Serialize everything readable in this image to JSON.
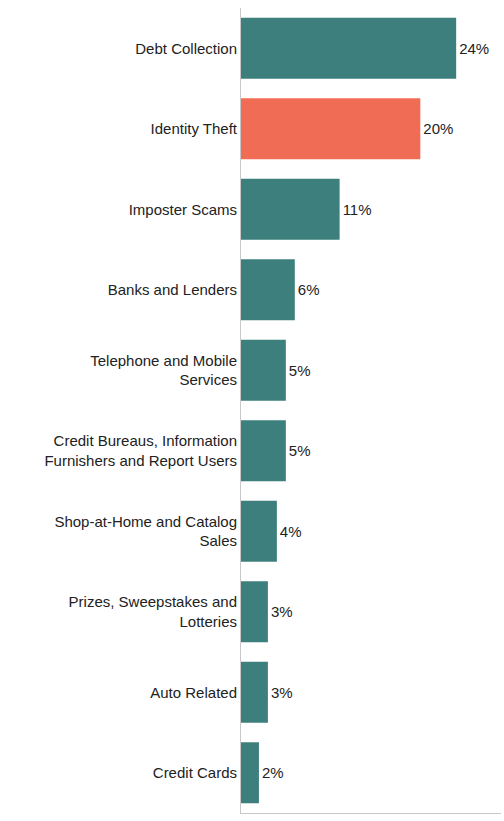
{
  "chart_data": {
    "type": "bar",
    "orientation": "horizontal",
    "categories": [
      "Debt Collection",
      "Identity Theft",
      "Imposter Scams",
      "Banks and Lenders",
      "Telephone and Mobile Services",
      "Credit Bureaus, Information Furnishers and Report Users",
      "Shop-at-Home and Catalog Sales",
      "Prizes, Sweepstakes and Lotteries",
      "Auto Related",
      "Credit Cards"
    ],
    "values": [
      24,
      20,
      11,
      6,
      5,
      5,
      4,
      3,
      3,
      2
    ],
    "value_labels": [
      "24%",
      "20%",
      "11%",
      "6%",
      "5%",
      "5%",
      "4%",
      "3%",
      "3%",
      "2%"
    ],
    "colors": [
      "#3c7f7c",
      "#f06c55",
      "#3c7f7c",
      "#3c7f7c",
      "#3c7f7c",
      "#3c7f7c",
      "#3c7f7c",
      "#3c7f7c",
      "#3c7f7c",
      "#3c7f7c"
    ],
    "xlim": [
      0,
      29
    ],
    "data_labels": true,
    "tick_labels": "y",
    "grid": false
  }
}
